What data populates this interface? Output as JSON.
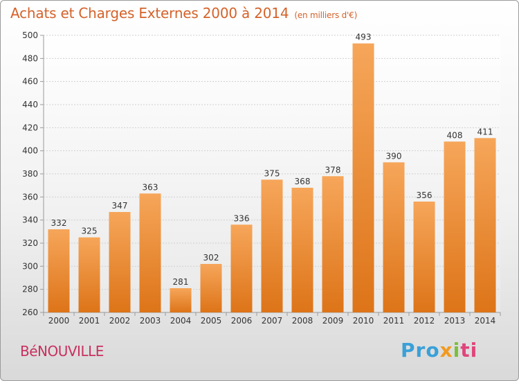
{
  "title": "Achats et Charges Externes 2000 à 2014",
  "subtitle": "(en milliers d'€)",
  "commune": "BéNOUVILLE",
  "logo": [
    "Pro",
    "x",
    "i",
    "ti"
  ],
  "colors": {
    "bar_top": "#f6a65a",
    "bar_bottom": "#dd7418",
    "title": "#d4622a",
    "commune": "#c8305e"
  },
  "chart_data": {
    "type": "bar",
    "title": "Achats et Charges Externes 2000 à 2014",
    "subtitle": "(en milliers d'€)",
    "categories": [
      "2000",
      "2001",
      "2002",
      "2003",
      "2004",
      "2005",
      "2006",
      "2007",
      "2008",
      "2009",
      "2010",
      "2011",
      "2012",
      "2013",
      "2014"
    ],
    "values": [
      332,
      325,
      347,
      363,
      281,
      302,
      336,
      375,
      368,
      378,
      493,
      390,
      356,
      408,
      411
    ],
    "ylim": [
      260,
      500
    ],
    "yticks": [
      260,
      280,
      300,
      320,
      340,
      360,
      380,
      400,
      420,
      440,
      460,
      480,
      500
    ],
    "grid": true,
    "data_labels": true
  }
}
